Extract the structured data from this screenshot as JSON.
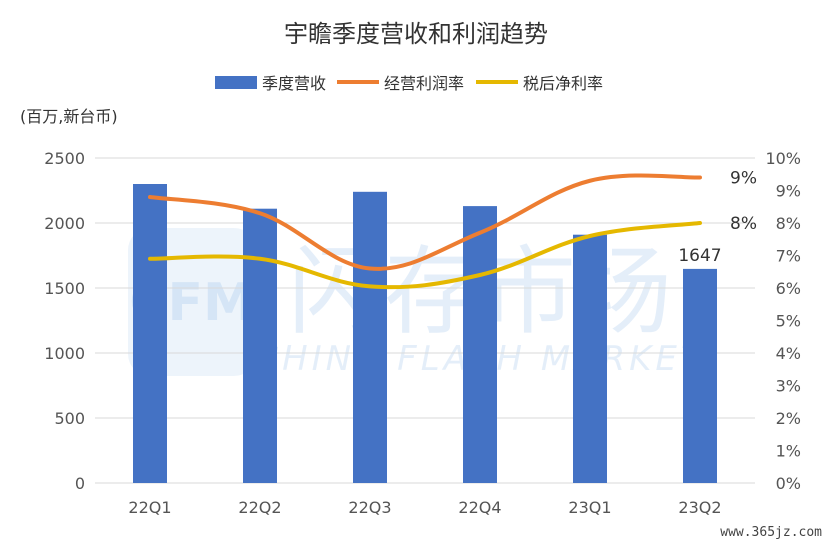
{
  "chart_data": {
    "type": "bar",
    "title": "宇瞻季度营收和利润趋势",
    "unit_label": "(百万,新台币)",
    "categories": [
      "22Q1",
      "22Q2",
      "22Q3",
      "22Q4",
      "23Q1",
      "23Q2"
    ],
    "series": [
      {
        "name": "季度营收",
        "type": "bar",
        "axis": "left",
        "color": "#4472C4",
        "values": [
          2300,
          2110,
          2240,
          2130,
          1910,
          1647
        ]
      },
      {
        "name": "经营利润率",
        "type": "line",
        "axis": "right",
        "color": "#ED7D31",
        "values": [
          8.8,
          8.3,
          6.6,
          7.7,
          9.3,
          9.4
        ]
      },
      {
        "name": "税后净利率",
        "type": "line",
        "axis": "right",
        "color": "#E5B800",
        "values": [
          6.9,
          6.9,
          6.05,
          6.4,
          7.6,
          8.0
        ]
      }
    ],
    "ylim_left": [
      0,
      2500
    ],
    "yticks_left": [
      "0",
      "500",
      "1000",
      "1500",
      "2000",
      "2500"
    ],
    "ylim_right": [
      0,
      10
    ],
    "yticks_right": [
      "0%",
      "1%",
      "2%",
      "3%",
      "4%",
      "5%",
      "6%",
      "7%",
      "8%",
      "9%",
      "10%"
    ],
    "grid": true,
    "legend": "top",
    "data_labels": {
      "bar_last": "1647",
      "line1_last": "9%",
      "line2_last": "8%"
    }
  },
  "watermark": {
    "logo": "CFM",
    "cn": "闪存市场",
    "en": "CHINA FLASH MARKET"
  },
  "footer": {
    "site": "www.365jz.com"
  }
}
